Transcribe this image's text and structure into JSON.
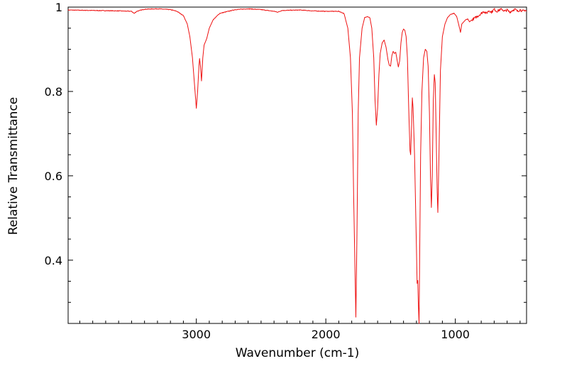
{
  "chart_data": {
    "type": "line",
    "title": "",
    "xlabel": "Wavenumber (cm-1)",
    "ylabel": "Relative Transmittance",
    "xlim": [
      3990,
      450
    ],
    "ylim": [
      0.25,
      1.0
    ],
    "x_reversed": true,
    "grid": false,
    "legend": "none",
    "x_ticks": [
      3000,
      2000,
      1000
    ],
    "x_tick_labels": [
      "3000",
      "2000",
      "1000"
    ],
    "x_minor_step": 100,
    "y_ticks": [
      0.4,
      0.6,
      0.8,
      1.0
    ],
    "y_tick_labels": [
      "0.4",
      "0.6",
      "0.8",
      "1"
    ],
    "y_minor_step": 0.05,
    "series": [
      {
        "color": "#ee1111",
        "noise_below_wavenumber": 880,
        "points": [
          [
            3990,
            0.993
          ],
          [
            3800,
            0.992
          ],
          [
            3600,
            0.991
          ],
          [
            3500,
            0.99
          ],
          [
            3480,
            0.985
          ],
          [
            3460,
            0.99
          ],
          [
            3400,
            0.995
          ],
          [
            3300,
            0.996
          ],
          [
            3200,
            0.994
          ],
          [
            3150,
            0.99
          ],
          [
            3100,
            0.98
          ],
          [
            3070,
            0.96
          ],
          [
            3050,
            0.93
          ],
          [
            3030,
            0.88
          ],
          [
            3015,
            0.82
          ],
          [
            3000,
            0.76
          ],
          [
            2990,
            0.8
          ],
          [
            2980,
            0.86
          ],
          [
            2975,
            0.878
          ],
          [
            2968,
            0.86
          ],
          [
            2960,
            0.825
          ],
          [
            2950,
            0.88
          ],
          [
            2940,
            0.91
          ],
          [
            2920,
            0.925
          ],
          [
            2900,
            0.95
          ],
          [
            2870,
            0.97
          ],
          [
            2820,
            0.985
          ],
          [
            2700,
            0.994
          ],
          [
            2600,
            0.996
          ],
          [
            2500,
            0.994
          ],
          [
            2400,
            0.99
          ],
          [
            2370,
            0.988
          ],
          [
            2340,
            0.992
          ],
          [
            2200,
            0.993
          ],
          [
            2100,
            0.991
          ],
          [
            2000,
            0.99
          ],
          [
            1900,
            0.99
          ],
          [
            1860,
            0.985
          ],
          [
            1830,
            0.95
          ],
          [
            1810,
            0.88
          ],
          [
            1795,
            0.75
          ],
          [
            1785,
            0.55
          ],
          [
            1775,
            0.38
          ],
          [
            1768,
            0.265
          ],
          [
            1760,
            0.45
          ],
          [
            1750,
            0.75
          ],
          [
            1740,
            0.88
          ],
          [
            1720,
            0.95
          ],
          [
            1700,
            0.975
          ],
          [
            1680,
            0.978
          ],
          [
            1660,
            0.975
          ],
          [
            1645,
            0.95
          ],
          [
            1630,
            0.88
          ],
          [
            1620,
            0.78
          ],
          [
            1610,
            0.72
          ],
          [
            1600,
            0.76
          ],
          [
            1590,
            0.84
          ],
          [
            1580,
            0.89
          ],
          [
            1565,
            0.915
          ],
          [
            1550,
            0.922
          ],
          [
            1535,
            0.905
          ],
          [
            1520,
            0.875
          ],
          [
            1510,
            0.862
          ],
          [
            1500,
            0.86
          ],
          [
            1490,
            0.885
          ],
          [
            1480,
            0.895
          ],
          [
            1470,
            0.89
          ],
          [
            1460,
            0.893
          ],
          [
            1450,
            0.875
          ],
          [
            1440,
            0.858
          ],
          [
            1430,
            0.872
          ],
          [
            1420,
            0.915
          ],
          [
            1410,
            0.94
          ],
          [
            1400,
            0.948
          ],
          [
            1390,
            0.945
          ],
          [
            1380,
            0.93
          ],
          [
            1370,
            0.88
          ],
          [
            1360,
            0.76
          ],
          [
            1350,
            0.66
          ],
          [
            1345,
            0.65
          ],
          [
            1338,
            0.72
          ],
          [
            1332,
            0.785
          ],
          [
            1326,
            0.76
          ],
          [
            1315,
            0.65
          ],
          [
            1305,
            0.5
          ],
          [
            1295,
            0.345
          ],
          [
            1290,
            0.352
          ],
          [
            1285,
            0.29
          ],
          [
            1280,
            0.25
          ],
          [
            1275,
            0.42
          ],
          [
            1268,
            0.65
          ],
          [
            1258,
            0.8
          ],
          [
            1245,
            0.88
          ],
          [
            1232,
            0.9
          ],
          [
            1220,
            0.895
          ],
          [
            1210,
            0.86
          ],
          [
            1200,
            0.75
          ],
          [
            1192,
            0.6
          ],
          [
            1185,
            0.525
          ],
          [
            1178,
            0.6
          ],
          [
            1170,
            0.78
          ],
          [
            1162,
            0.84
          ],
          [
            1155,
            0.82
          ],
          [
            1148,
            0.7
          ],
          [
            1140,
            0.56
          ],
          [
            1135,
            0.513
          ],
          [
            1128,
            0.62
          ],
          [
            1115,
            0.85
          ],
          [
            1100,
            0.93
          ],
          [
            1080,
            0.96
          ],
          [
            1060,
            0.975
          ],
          [
            1040,
            0.982
          ],
          [
            1010,
            0.985
          ],
          [
            990,
            0.978
          ],
          [
            975,
            0.96
          ],
          [
            960,
            0.94
          ],
          [
            950,
            0.96
          ],
          [
            935,
            0.965
          ],
          [
            920,
            0.97
          ],
          [
            905,
            0.972
          ],
          [
            890,
            0.965
          ],
          [
            880,
            0.968
          ],
          [
            860,
            0.972
          ],
          [
            840,
            0.976
          ],
          [
            820,
            0.98
          ],
          [
            800,
            0.985
          ],
          [
            780,
            0.99
          ],
          [
            760,
            0.985
          ],
          [
            740,
            0.992
          ],
          [
            720,
            0.988
          ],
          [
            700,
            0.995
          ],
          [
            680,
            0.99
          ],
          [
            660,
            0.993
          ],
          [
            640,
            0.995
          ],
          [
            620,
            0.99
          ],
          [
            600,
            0.993
          ],
          [
            580,
            0.988
          ],
          [
            560,
            0.992
          ],
          [
            540,
            0.995
          ],
          [
            520,
            0.99
          ],
          [
            500,
            0.994
          ],
          [
            480,
            0.99
          ],
          [
            460,
            0.993
          ],
          [
            450,
            0.99
          ]
        ]
      }
    ]
  }
}
